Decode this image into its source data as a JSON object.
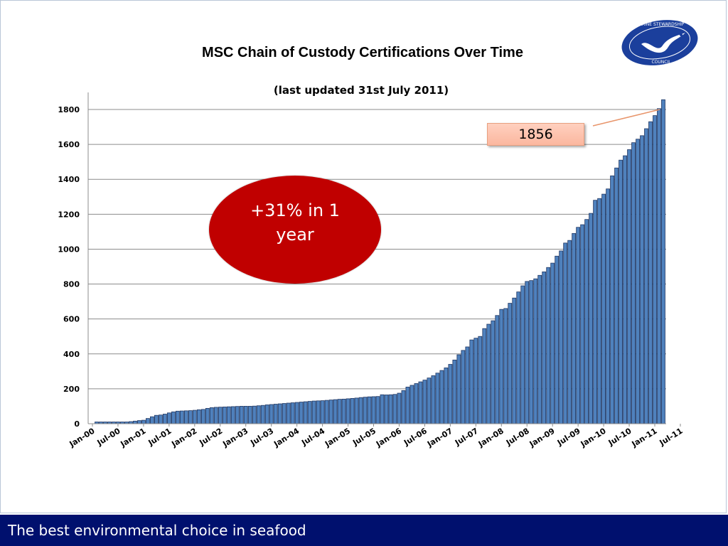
{
  "slide": {
    "footer_text": "The best environmental choice in seafood",
    "logo": {
      "icon": "msc-logo-icon",
      "text_top": "MARINE STEWARDSHIP",
      "text_bottom": "COUNCIL",
      "color": "#1b3f9c"
    },
    "annotation_ellipse": "+31% in 1 year",
    "annotation_callout": "1856",
    "colors": {
      "bar_fill": "#4f81bd",
      "bar_stroke": "#1f3763",
      "ellipse": "#c00000",
      "footer": "#00106e"
    }
  },
  "chart_data": {
    "type": "bar",
    "title": "MSC Chain of Custody Certifications Over Time",
    "subtitle": "(last updated 31st July 2011)",
    "xlabel": "",
    "ylabel": "",
    "ylim": [
      0,
      1900
    ],
    "yticks": [
      0,
      200,
      400,
      600,
      800,
      1000,
      1200,
      1400,
      1600,
      1800
    ],
    "grid": true,
    "x_tick_labels": [
      "Jan-00",
      "Jul-00",
      "Jan-01",
      "Jul-01",
      "Jan-02",
      "Jul-02",
      "Jan-03",
      "Jul-03",
      "Jan-04",
      "Jul-04",
      "Jan-05",
      "Jul-05",
      "Jan-06",
      "Jul-06",
      "Jan-07",
      "Jul-07",
      "Jan-08",
      "Jul-08",
      "Jan-09",
      "Jul-09",
      "Jan-10",
      "Jul-10",
      "Jan-11",
      "Jul-11"
    ],
    "start_month": "Jan-00",
    "values": [
      0,
      10,
      10,
      10,
      10,
      10,
      10,
      10,
      10,
      12,
      15,
      18,
      20,
      30,
      40,
      48,
      50,
      55,
      62,
      68,
      72,
      73,
      74,
      75,
      77,
      80,
      82,
      88,
      92,
      94,
      95,
      96,
      97,
      98,
      99,
      100,
      100,
      100,
      101,
      103,
      105,
      108,
      110,
      112,
      114,
      116,
      118,
      120,
      122,
      124,
      126,
      128,
      130,
      131,
      132,
      134,
      136,
      138,
      140,
      141,
      143,
      145,
      147,
      150,
      152,
      154,
      155,
      156,
      166,
      165,
      166,
      168,
      175,
      190,
      210,
      220,
      230,
      240,
      250,
      262,
      275,
      290,
      305,
      320,
      340,
      365,
      395,
      420,
      440,
      480,
      490,
      500,
      545,
      570,
      590,
      620,
      655,
      660,
      690,
      720,
      755,
      790,
      815,
      820,
      830,
      850,
      870,
      895,
      920,
      960,
      990,
      1035,
      1050,
      1090,
      1125,
      1140,
      1170,
      1205,
      1280,
      1290,
      1315,
      1345,
      1420,
      1465,
      1510,
      1535,
      1570,
      1610,
      1630,
      1650,
      1690,
      1730,
      1765,
      1805,
      1856
    ]
  }
}
